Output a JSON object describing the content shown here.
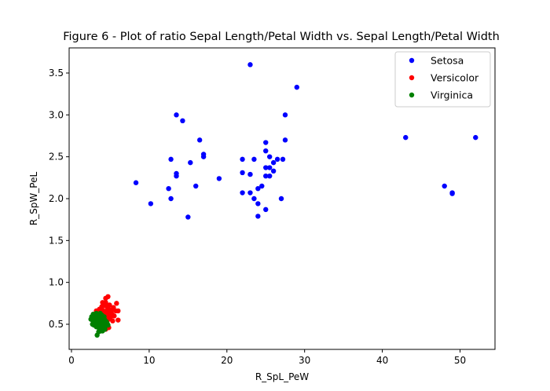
{
  "chart_data": {
    "type": "scatter",
    "title": "Figure 6 - Plot of ratio Sepal Length/Petal Width vs. Sepal Length/Petal Width",
    "xlabel": "R_SpL_PeW",
    "ylabel": "R_SpW_PeL",
    "xlim": [
      -0.3,
      54.5
    ],
    "ylim": [
      0.2,
      3.8
    ],
    "xticks": [
      0,
      10,
      20,
      30,
      40,
      50
    ],
    "yticks": [
      0.5,
      1.0,
      1.5,
      2.0,
      2.5,
      3.0,
      3.5
    ],
    "xtick_labels": [
      "0",
      "10",
      "20",
      "30",
      "40",
      "50"
    ],
    "ytick_labels": [
      "0.5",
      "1.0",
      "1.5",
      "2.0",
      "2.5",
      "3.0",
      "3.5"
    ],
    "grid": false,
    "legend_position": "top-right",
    "series": [
      {
        "name": "Setosa",
        "color": "#0000ff",
        "points": [
          [
            23.0,
            3.6
          ],
          [
            29.0,
            3.33
          ],
          [
            13.5,
            3.0
          ],
          [
            27.5,
            3.0
          ],
          [
            14.3,
            2.93
          ],
          [
            43.0,
            2.73
          ],
          [
            52.0,
            2.73
          ],
          [
            16.5,
            2.7
          ],
          [
            27.5,
            2.7
          ],
          [
            25.0,
            2.67
          ],
          [
            17.0,
            2.53
          ],
          [
            25.0,
            2.57
          ],
          [
            17.0,
            2.5
          ],
          [
            25.5,
            2.5
          ],
          [
            12.8,
            2.47
          ],
          [
            22.0,
            2.47
          ],
          [
            23.5,
            2.47
          ],
          [
            26.5,
            2.47
          ],
          [
            27.2,
            2.47
          ],
          [
            15.3,
            2.43
          ],
          [
            26.0,
            2.43
          ],
          [
            25.0,
            2.37
          ],
          [
            25.5,
            2.37
          ],
          [
            26.0,
            2.33
          ],
          [
            22.0,
            2.31
          ],
          [
            13.5,
            2.3
          ],
          [
            13.5,
            2.27
          ],
          [
            23.0,
            2.29
          ],
          [
            25.0,
            2.27
          ],
          [
            25.5,
            2.27
          ],
          [
            19.0,
            2.24
          ],
          [
            8.3,
            2.19
          ],
          [
            16.0,
            2.15
          ],
          [
            24.5,
            2.15
          ],
          [
            48.0,
            2.15
          ],
          [
            12.5,
            2.12
          ],
          [
            24.0,
            2.12
          ],
          [
            22.0,
            2.07
          ],
          [
            23.0,
            2.07
          ],
          [
            49.0,
            2.07
          ],
          [
            49.0,
            2.06
          ],
          [
            12.8,
            2.0
          ],
          [
            23.5,
            2.0
          ],
          [
            27.0,
            2.0
          ],
          [
            10.2,
            1.94
          ],
          [
            24.0,
            1.94
          ],
          [
            25.0,
            1.87
          ],
          [
            15.0,
            1.78
          ],
          [
            24.0,
            1.79
          ]
        ]
      },
      {
        "name": "Versicolor",
        "color": "#ff0000",
        "points": [
          [
            4.7,
            0.83
          ],
          [
            4.4,
            0.81
          ],
          [
            4.0,
            0.76
          ],
          [
            4.4,
            0.76
          ],
          [
            5.8,
            0.75
          ],
          [
            4.9,
            0.73
          ],
          [
            4.2,
            0.72
          ],
          [
            3.9,
            0.71
          ],
          [
            4.6,
            0.71
          ],
          [
            5.4,
            0.7
          ],
          [
            3.6,
            0.68
          ],
          [
            4.8,
            0.68
          ],
          [
            5.3,
            0.68
          ],
          [
            3.2,
            0.66
          ],
          [
            4.1,
            0.66
          ],
          [
            4.5,
            0.66
          ],
          [
            5.0,
            0.66
          ],
          [
            5.7,
            0.66
          ],
          [
            6.0,
            0.66
          ],
          [
            3.8,
            0.64
          ],
          [
            4.3,
            0.64
          ],
          [
            4.7,
            0.64
          ],
          [
            5.1,
            0.64
          ],
          [
            3.4,
            0.62
          ],
          [
            4.0,
            0.62
          ],
          [
            4.6,
            0.62
          ],
          [
            5.2,
            0.62
          ],
          [
            3.7,
            0.6
          ],
          [
            4.2,
            0.6
          ],
          [
            4.9,
            0.6
          ],
          [
            5.5,
            0.6
          ],
          [
            3.9,
            0.58
          ],
          [
            4.4,
            0.58
          ],
          [
            5.0,
            0.58
          ],
          [
            3.5,
            0.56
          ],
          [
            4.1,
            0.56
          ],
          [
            4.8,
            0.56
          ],
          [
            6.0,
            0.55
          ],
          [
            3.3,
            0.55
          ],
          [
            4.5,
            0.54
          ],
          [
            5.3,
            0.54
          ],
          [
            3.8,
            0.52
          ],
          [
            4.3,
            0.52
          ],
          [
            4.6,
            0.5
          ],
          [
            4.0,
            0.5
          ],
          [
            3.6,
            0.48
          ],
          [
            4.2,
            0.47
          ],
          [
            4.8,
            0.46
          ],
          [
            3.9,
            0.45
          ],
          [
            4.4,
            0.44
          ]
        ]
      },
      {
        "name": "Virginica",
        "color": "#008000",
        "points": [
          [
            2.5,
            0.56
          ],
          [
            2.8,
            0.62
          ],
          [
            3.2,
            0.63
          ],
          [
            2.9,
            0.58
          ],
          [
            3.0,
            0.53
          ],
          [
            3.3,
            0.57
          ],
          [
            3.6,
            0.6
          ],
          [
            2.7,
            0.5
          ],
          [
            3.1,
            0.51
          ],
          [
            3.4,
            0.54
          ],
          [
            3.5,
            0.49
          ],
          [
            3.8,
            0.56
          ],
          [
            3.0,
            0.61
          ],
          [
            3.9,
            0.58
          ],
          [
            4.1,
            0.53
          ],
          [
            3.3,
            0.47
          ],
          [
            3.7,
            0.52
          ],
          [
            4.0,
            0.47
          ],
          [
            3.6,
            0.44
          ],
          [
            4.2,
            0.49
          ],
          [
            3.2,
            0.55
          ],
          [
            3.5,
            0.59
          ],
          [
            2.6,
            0.59
          ],
          [
            3.9,
            0.51
          ],
          [
            4.3,
            0.55
          ],
          [
            3.4,
            0.5
          ],
          [
            3.7,
            0.46
          ],
          [
            4.1,
            0.45
          ],
          [
            3.8,
            0.42
          ],
          [
            3.5,
            0.41
          ],
          [
            3.3,
            0.37
          ],
          [
            4.4,
            0.48
          ],
          [
            4.6,
            0.51
          ],
          [
            3.0,
            0.56
          ],
          [
            2.8,
            0.53
          ],
          [
            3.1,
            0.58
          ],
          [
            3.6,
            0.55
          ],
          [
            4.0,
            0.57
          ],
          [
            3.9,
            0.61
          ],
          [
            4.2,
            0.59
          ],
          [
            3.4,
            0.61
          ],
          [
            3.7,
            0.63
          ],
          [
            2.9,
            0.49
          ],
          [
            4.5,
            0.53
          ],
          [
            3.2,
            0.47
          ],
          [
            4.3,
            0.44
          ],
          [
            3.8,
            0.49
          ],
          [
            3.5,
            0.52
          ],
          [
            4.0,
            0.42
          ],
          [
            4.7,
            0.49
          ]
        ]
      }
    ]
  }
}
